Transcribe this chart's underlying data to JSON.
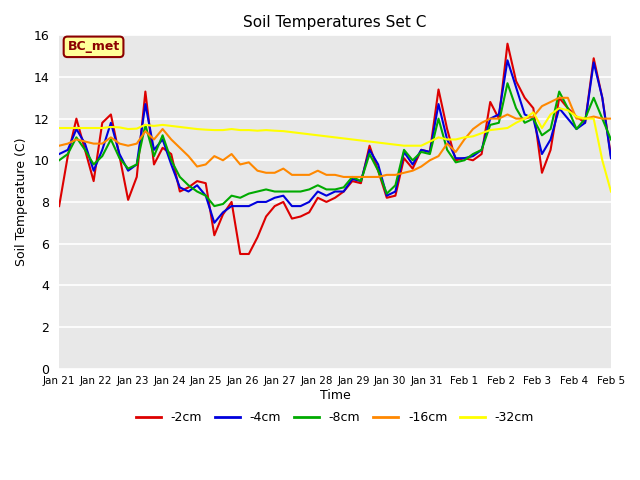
{
  "title": "Soil Temperatures Set C",
  "xlabel": "Time",
  "ylabel": "Soil Temperature (C)",
  "ylim": [
    0,
    16
  ],
  "yticks": [
    0,
    2,
    4,
    6,
    8,
    10,
    12,
    14,
    16
  ],
  "fig_bg_color": "#d8d8d8",
  "plot_bg_color": "#e8e8e8",
  "annotation_text": "BC_met",
  "annotation_bg": "#ffff99",
  "annotation_border": "#8b0000",
  "annotation_text_color": "#8b0000",
  "x_labels": [
    "Jan 21",
    "Jan 22",
    "Jan 23",
    "Jan 24",
    "Jan 25",
    "Jan 26",
    "Jan 27",
    "Jan 28",
    "Jan 29",
    "Jan 30",
    "Jan 31",
    "Feb 1",
    "Feb 2",
    "Feb 3",
    "Feb 4",
    "Feb 5"
  ],
  "series": {
    "-2cm": {
      "color": "#dd0000",
      "data": [
        7.8,
        10.2,
        12.0,
        10.5,
        9.0,
        11.8,
        12.2,
        10.2,
        8.1,
        9.2,
        13.3,
        9.8,
        10.6,
        10.3,
        8.5,
        8.7,
        9.0,
        8.9,
        6.4,
        7.4,
        8.0,
        5.5,
        5.5,
        6.3,
        7.3,
        7.8,
        8.0,
        7.2,
        7.3,
        7.5,
        8.2,
        8.0,
        8.2,
        8.5,
        9.0,
        8.9,
        10.7,
        9.5,
        8.2,
        8.3,
        10.1,
        9.6,
        10.5,
        10.4,
        13.4,
        11.5,
        10.0,
        10.1,
        10.0,
        10.3,
        12.8,
        12.0,
        15.6,
        13.8,
        13.0,
        12.5,
        9.4,
        10.5,
        13.0,
        12.5,
        12.1,
        11.8,
        14.9,
        13.0,
        10.2
      ]
    },
    "-4cm": {
      "color": "#0000dd",
      "data": [
        10.3,
        10.5,
        11.5,
        10.8,
        9.5,
        10.5,
        11.8,
        10.3,
        9.5,
        9.8,
        12.7,
        10.5,
        11.0,
        9.8,
        8.7,
        8.5,
        8.8,
        8.3,
        7.0,
        7.5,
        7.8,
        7.8,
        7.8,
        8.0,
        8.0,
        8.2,
        8.3,
        7.8,
        7.8,
        8.0,
        8.5,
        8.3,
        8.5,
        8.5,
        9.1,
        9.0,
        10.5,
        9.8,
        8.3,
        8.5,
        10.4,
        9.8,
        10.5,
        10.4,
        12.7,
        11.0,
        10.1,
        10.1,
        10.2,
        10.5,
        12.0,
        12.2,
        14.8,
        13.5,
        12.2,
        12.0,
        10.3,
        11.0,
        12.5,
        12.0,
        11.5,
        11.8,
        14.7,
        13.0,
        10.1
      ]
    },
    "-8cm": {
      "color": "#00aa00",
      "data": [
        10.0,
        10.3,
        11.1,
        10.5,
        9.8,
        10.2,
        11.0,
        10.1,
        9.6,
        9.8,
        11.7,
        10.2,
        11.2,
        10.0,
        9.2,
        8.8,
        8.5,
        8.3,
        7.8,
        7.9,
        8.3,
        8.2,
        8.4,
        8.5,
        8.6,
        8.5,
        8.5,
        8.5,
        8.5,
        8.6,
        8.8,
        8.6,
        8.6,
        8.7,
        9.2,
        9.0,
        10.3,
        9.5,
        8.4,
        8.8,
        10.5,
        10.0,
        10.4,
        10.3,
        12.0,
        10.5,
        9.9,
        10.0,
        10.3,
        10.5,
        11.7,
        11.8,
        13.7,
        12.5,
        11.8,
        12.0,
        11.2,
        11.5,
        13.3,
        12.5,
        11.5,
        12.0,
        13.0,
        12.0,
        11.0
      ]
    },
    "-16cm": {
      "color": "#ff8800",
      "data": [
        10.7,
        10.8,
        11.0,
        10.9,
        10.8,
        10.8,
        11.1,
        10.8,
        10.7,
        10.8,
        11.4,
        11.0,
        11.5,
        11.0,
        10.6,
        10.2,
        9.7,
        9.8,
        10.2,
        10.0,
        10.3,
        9.8,
        9.9,
        9.5,
        9.4,
        9.4,
        9.6,
        9.3,
        9.3,
        9.3,
        9.5,
        9.3,
        9.3,
        9.2,
        9.2,
        9.2,
        9.2,
        9.2,
        9.3,
        9.3,
        9.4,
        9.5,
        9.7,
        10.0,
        10.2,
        10.8,
        10.4,
        11.0,
        11.5,
        11.8,
        12.0,
        12.0,
        12.2,
        12.0,
        12.0,
        12.1,
        12.6,
        12.8,
        13.0,
        13.0,
        12.0,
        12.0,
        12.1,
        12.0,
        12.0
      ]
    },
    "-32cm": {
      "color": "#ffff00",
      "data": [
        11.55,
        11.55,
        11.55,
        11.55,
        11.55,
        11.55,
        11.6,
        11.58,
        11.5,
        11.52,
        11.7,
        11.65,
        11.7,
        11.65,
        11.6,
        11.55,
        11.5,
        11.47,
        11.45,
        11.45,
        11.5,
        11.45,
        11.45,
        11.42,
        11.45,
        11.42,
        11.4,
        11.35,
        11.3,
        11.25,
        11.2,
        11.15,
        11.1,
        11.05,
        11.0,
        10.95,
        10.9,
        10.85,
        10.8,
        10.75,
        10.7,
        10.7,
        10.7,
        10.9,
        11.1,
        11.0,
        11.0,
        11.1,
        11.15,
        11.3,
        11.45,
        11.5,
        11.55,
        11.8,
        12.0,
        12.3,
        11.55,
        12.2,
        12.5,
        12.4,
        12.1,
        12.0,
        12.0,
        10.0,
        8.5
      ]
    }
  },
  "legend_entries": [
    "-2cm",
    "-4cm",
    "-8cm",
    "-16cm",
    "-32cm"
  ],
  "legend_colors": [
    "#dd0000",
    "#0000dd",
    "#00aa00",
    "#ff8800",
    "#ffff00"
  ],
  "linewidth": 1.5
}
